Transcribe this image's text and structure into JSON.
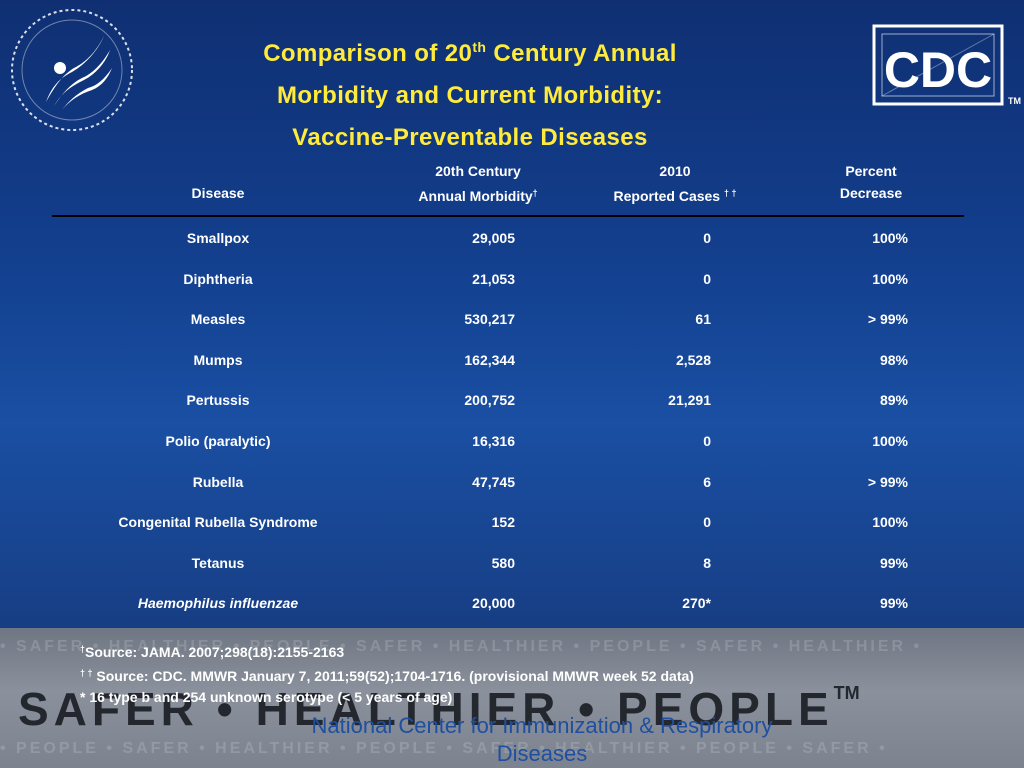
{
  "slide": {
    "title_line1_pre": "Comparison of 20",
    "title_line1_sup": "th",
    "title_line1_post": " Century Annual",
    "title_line2": "Morbidity and Current Morbidity:",
    "title_line3": "Vaccine-Preventable Diseases"
  },
  "logos": {
    "cdc_text": "CDC",
    "cdc_tm": "TM"
  },
  "table": {
    "headers": {
      "disease": "Disease",
      "morbidity_line1": "20th Century",
      "morbidity_line2": "Annual Morbidity",
      "morbidity_mark": "†",
      "cases_line1": "2010",
      "cases_line2": "Reported Cases ",
      "cases_mark": "† †",
      "percent_line1": "Percent",
      "percent_line2": "Decrease"
    },
    "rows": [
      {
        "disease": "Smallpox",
        "morbidity": "29,005",
        "cases": "0",
        "percent": "100%"
      },
      {
        "disease": "Diphtheria",
        "morbidity": "21,053",
        "cases": "0",
        "percent": "100%"
      },
      {
        "disease": "Measles",
        "morbidity": "530,217",
        "cases": "61",
        "percent": "> 99%"
      },
      {
        "disease": "Mumps",
        "morbidity": "162,344",
        "cases": "2,528",
        "percent": "98%"
      },
      {
        "disease": "Pertussis",
        "morbidity": "200,752",
        "cases": "21,291",
        "percent": "89%"
      },
      {
        "disease": "Polio (paralytic)",
        "morbidity": "16,316",
        "cases": "0",
        "percent": "100%"
      },
      {
        "disease": "Rubella",
        "morbidity": "47,745",
        "cases": "6",
        "percent": "> 99%"
      },
      {
        "disease": "Congenital Rubella Syndrome",
        "morbidity": "152",
        "cases": "0",
        "percent": "100%"
      },
      {
        "disease": "Tetanus",
        "morbidity": "580",
        "cases": "8",
        "percent": "99%"
      },
      {
        "disease": "Haemophilus influenzae",
        "morbidity": "20,000",
        "cases": "270*",
        "percent": "99%"
      }
    ]
  },
  "footnotes": {
    "note1_mark": "†",
    "note1_text": "Source:  JAMA. 2007;298(18):2155-2163",
    "note2_mark": "† †",
    "note2_text": " Source:  CDC.  MMWR January 7, 2011;59(52);1704-1716.  (provisional MMWR week 52 data)",
    "note3_text": "* 16 type b and 254 unknown serotype (< 5 years of age)"
  },
  "banner": {
    "slogan": "SAFER • HEALTHIER • PEOPLE",
    "slogan_tm": "TM",
    "faint_line1": "• SAFER • HEALTHIER • PEOPLE • SAFER • HEALTHIER • PEOPLE • SAFER • HEALTHIER •",
    "faint_line2": "• PEOPLE • SAFER • HEALTHIER • PEOPLE • SAFER • HEALTHIER • PEOPLE • SAFER •"
  },
  "center_name": "National Center for Immunization & Respiratory Diseases",
  "colors": {
    "title": "#ffeb3b",
    "text": "#ffffff",
    "center_name": "#1f4fa0",
    "background": "#1a4fa3"
  }
}
